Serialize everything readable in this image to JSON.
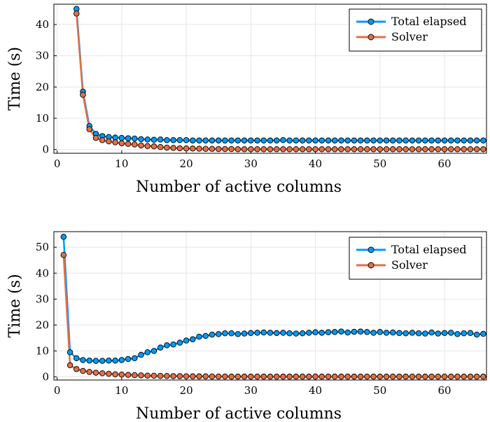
{
  "colors": {
    "total": "#009af9",
    "solver": "#e26f46"
  },
  "chart_data": [
    {
      "type": "line",
      "xlabel": "Number of active columns",
      "ylabel": "Time (s)",
      "xlim": [
        -0.5,
        66.5
      ],
      "ylim": [
        -1.2,
        46.5
      ],
      "xticks": [
        0,
        10,
        20,
        30,
        40,
        50,
        60
      ],
      "yticks": [
        0,
        10,
        20,
        30,
        40
      ],
      "grid": true,
      "legend": "top-right",
      "series": [
        {
          "name": "Total elapsed",
          "x": [
            3,
            4,
            5,
            6,
            7,
            8,
            9,
            10,
            11,
            12,
            13,
            14,
            15,
            16,
            17,
            18,
            19,
            20,
            21,
            22,
            23,
            24,
            25,
            26,
            27,
            28,
            29,
            30,
            31,
            32,
            33,
            34,
            35,
            36,
            37,
            38,
            39,
            40,
            41,
            42,
            43,
            44,
            45,
            46,
            47,
            48,
            49,
            50,
            51,
            52,
            53,
            54,
            55,
            56,
            57,
            58,
            59,
            60,
            61,
            62,
            63,
            64,
            65,
            66
          ],
          "values": [
            45.0,
            18.5,
            7.5,
            5.0,
            4.3,
            4.0,
            3.8,
            3.7,
            3.6,
            3.5,
            3.3,
            3.2,
            3.1,
            3.2,
            3.0,
            3.0,
            3.0,
            3.0,
            2.9,
            2.9,
            2.9,
            2.9,
            2.9,
            2.9,
            2.9,
            2.9,
            2.9,
            2.9,
            2.9,
            2.9,
            2.9,
            2.9,
            3.0,
            2.9,
            2.9,
            2.9,
            2.9,
            2.9,
            2.9,
            2.9,
            2.9,
            2.9,
            2.9,
            2.9,
            2.9,
            2.9,
            2.9,
            2.9,
            2.9,
            2.9,
            2.9,
            2.9,
            2.9,
            2.9,
            2.9,
            2.9,
            2.9,
            2.9,
            2.9,
            2.9,
            2.9,
            2.9,
            2.9,
            2.9
          ]
        },
        {
          "name": "Solver",
          "x": [
            3,
            4,
            5,
            6,
            7,
            8,
            9,
            10,
            11,
            12,
            13,
            14,
            15,
            16,
            17,
            18,
            19,
            20,
            21,
            22,
            23,
            24,
            25,
            26,
            27,
            28,
            29,
            30,
            31,
            32,
            33,
            34,
            35,
            36,
            37,
            38,
            39,
            40,
            41,
            42,
            43,
            44,
            45,
            46,
            47,
            48,
            49,
            50,
            51,
            52,
            53,
            54,
            55,
            56,
            57,
            58,
            59,
            60,
            61,
            62,
            63,
            64,
            65,
            66
          ],
          "values": [
            43.5,
            17.5,
            6.5,
            3.7,
            3.0,
            2.6,
            2.3,
            2.0,
            1.8,
            1.6,
            1.3,
            1.1,
            1.0,
            0.8,
            0.6,
            0.5,
            0.4,
            0.35,
            0.3,
            0.25,
            0.2,
            0.2,
            0.15,
            0.15,
            0.15,
            0.1,
            0.1,
            0.1,
            0.1,
            0.1,
            0.1,
            0.1,
            0.1,
            0.1,
            0.1,
            0.1,
            0.1,
            0.1,
            0.1,
            0.1,
            0.1,
            0.1,
            0.1,
            0.1,
            0.1,
            0.1,
            0.1,
            0.1,
            0.1,
            0.1,
            0.1,
            0.1,
            0.1,
            0.1,
            0.1,
            0.1,
            0.1,
            0.1,
            0.1,
            0.1,
            0.1,
            0.1,
            0.1,
            0.1
          ]
        }
      ]
    },
    {
      "type": "line",
      "xlabel": "Number of active columns",
      "ylabel": "Time (s)",
      "xlim": [
        -0.5,
        66.5
      ],
      "ylim": [
        -1.2,
        56.0
      ],
      "xticks": [
        0,
        10,
        20,
        30,
        40,
        50,
        60
      ],
      "yticks": [
        0,
        10,
        20,
        30,
        40,
        50
      ],
      "grid": true,
      "legend": "top-right",
      "series": [
        {
          "name": "Total elapsed",
          "x": [
            1,
            2,
            3,
            4,
            5,
            6,
            7,
            8,
            9,
            10,
            11,
            12,
            13,
            14,
            15,
            16,
            17,
            18,
            19,
            20,
            21,
            22,
            23,
            24,
            25,
            26,
            27,
            28,
            29,
            30,
            31,
            32,
            33,
            34,
            35,
            36,
            37,
            38,
            39,
            40,
            41,
            42,
            43,
            44,
            45,
            46,
            47,
            48,
            49,
            50,
            51,
            52,
            53,
            54,
            55,
            56,
            57,
            58,
            59,
            60,
            61,
            62,
            63,
            64,
            65,
            66
          ],
          "values": [
            54.0,
            9.5,
            7.2,
            6.5,
            6.3,
            6.2,
            6.2,
            6.3,
            6.3,
            6.5,
            6.9,
            7.2,
            8.5,
            9.5,
            10.0,
            11.3,
            12.2,
            12.5,
            13.2,
            14.0,
            14.5,
            15.5,
            15.8,
            16.3,
            16.5,
            16.8,
            16.8,
            16.5,
            16.7,
            16.9,
            17.0,
            17.1,
            17.0,
            16.9,
            17.0,
            16.8,
            16.7,
            16.8,
            17.0,
            17.2,
            17.0,
            17.2,
            17.3,
            17.5,
            17.1,
            17.4,
            17.5,
            17.3,
            17.0,
            17.3,
            17.0,
            17.1,
            16.9,
            16.8,
            17.0,
            16.8,
            16.7,
            17.1,
            16.7,
            16.9,
            17.0,
            16.5,
            16.8,
            16.9,
            16.3,
            16.6
          ]
        },
        {
          "name": "Solver",
          "x": [
            1,
            2,
            3,
            4,
            5,
            6,
            7,
            8,
            9,
            10,
            11,
            12,
            13,
            14,
            15,
            16,
            17,
            18,
            19,
            20,
            21,
            22,
            23,
            24,
            25,
            26,
            27,
            28,
            29,
            30,
            31,
            32,
            33,
            34,
            35,
            36,
            37,
            38,
            39,
            40,
            41,
            42,
            43,
            44,
            45,
            46,
            47,
            48,
            49,
            50,
            51,
            52,
            53,
            54,
            55,
            56,
            57,
            58,
            59,
            60,
            61,
            62,
            63,
            64,
            65,
            66
          ],
          "values": [
            47.0,
            4.5,
            3.0,
            2.3,
            1.9,
            1.6,
            1.4,
            1.2,
            1.0,
            0.9,
            0.8,
            0.7,
            0.6,
            0.5,
            0.45,
            0.4,
            0.35,
            0.3,
            0.3,
            0.25,
            0.2,
            0.2,
            0.2,
            0.15,
            0.15,
            0.15,
            0.1,
            0.1,
            0.1,
            0.1,
            0.1,
            0.1,
            0.1,
            0.1,
            0.1,
            0.1,
            0.1,
            0.1,
            0.1,
            0.1,
            0.1,
            0.1,
            0.1,
            0.1,
            0.1,
            0.1,
            0.1,
            0.1,
            0.1,
            0.1,
            0.1,
            0.1,
            0.1,
            0.1,
            0.1,
            0.1,
            0.1,
            0.1,
            0.1,
            0.1,
            0.1,
            0.1,
            0.1,
            0.1,
            0.1,
            0.1
          ]
        }
      ]
    }
  ]
}
